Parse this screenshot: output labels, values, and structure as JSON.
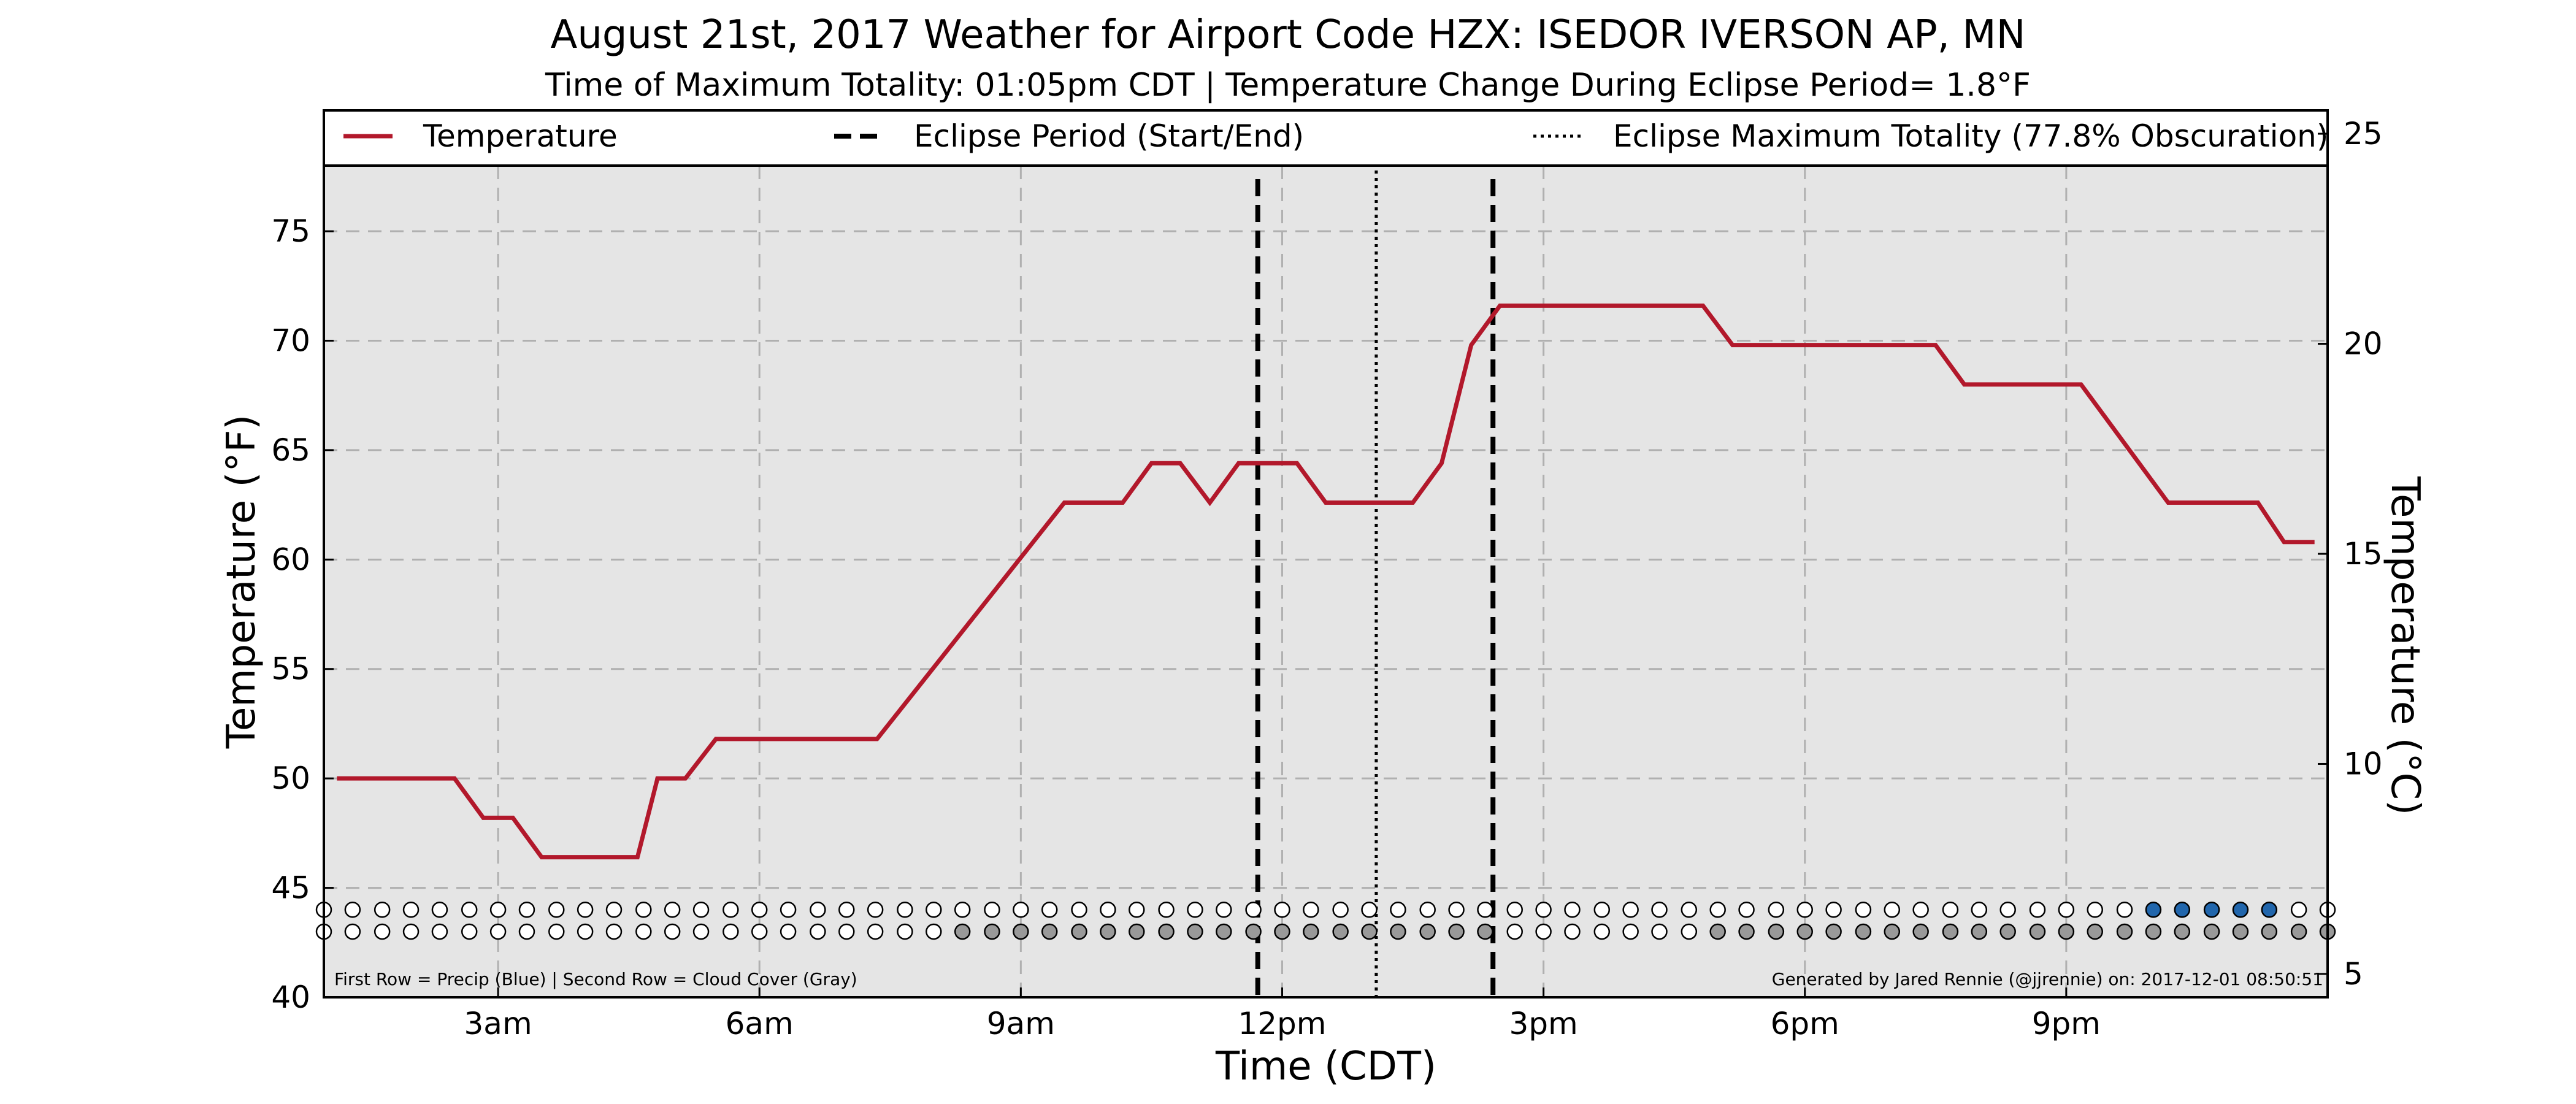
{
  "chart_data": {
    "type": "line",
    "title": "August 21st, 2017 Weather for Airport Code HZX: ISEDOR IVERSON AP, MN",
    "subtitle": "Time of Maximum Totality: 01:05pm CDT | Temperature Change During Eclipse Period= 1.8°F",
    "xlabel": "Time (CDT)",
    "ylabel": "Temperature (°F)",
    "ylabel_right": "Temperature (°C)",
    "xlim_hours": [
      1,
      24
    ],
    "ylim": [
      40,
      78
    ],
    "ylim_right_celsius": [
      4.4444,
      25.5556
    ],
    "x_ticks": [
      {
        "hour": 3,
        "label": "3am"
      },
      {
        "hour": 6,
        "label": "6am"
      },
      {
        "hour": 9,
        "label": "9am"
      },
      {
        "hour": 12,
        "label": "12pm"
      },
      {
        "hour": 15,
        "label": "3pm"
      },
      {
        "hour": 18,
        "label": "6pm"
      },
      {
        "hour": 21,
        "label": "9pm"
      }
    ],
    "y_ticks": [
      40,
      45,
      50,
      55,
      60,
      65,
      70,
      75
    ],
    "y_ticks_right": [
      5,
      10,
      15,
      20,
      25
    ],
    "grid": true,
    "legend": {
      "placement": "top",
      "entries": [
        {
          "label": "Temperature",
          "style": "solid",
          "color": "#b2182b"
        },
        {
          "label": "Eclipse Period (Start/End)",
          "style": "dashed",
          "color": "#000000"
        },
        {
          "label": "Eclipse Maximum Totality (77.8% Obscuration)",
          "style": "dotted",
          "color": "#000000"
        }
      ]
    },
    "series": [
      {
        "name": "Temperature",
        "color": "#b2182b",
        "points": [
          [
            1.15,
            50.0
          ],
          [
            2.15,
            50.0
          ],
          [
            2.5,
            50.0
          ],
          [
            2.83,
            48.2
          ],
          [
            3.17,
            48.2
          ],
          [
            3.5,
            46.4
          ],
          [
            4.17,
            46.4
          ],
          [
            4.6,
            46.4
          ],
          [
            4.83,
            50.0
          ],
          [
            5.15,
            50.0
          ],
          [
            5.5,
            51.8
          ],
          [
            7.35,
            51.8
          ],
          [
            9.5,
            62.6
          ],
          [
            10.17,
            62.6
          ],
          [
            10.5,
            64.4
          ],
          [
            10.83,
            64.4
          ],
          [
            11.17,
            62.6
          ],
          [
            11.5,
            64.4
          ],
          [
            12.17,
            64.4
          ],
          [
            12.5,
            62.6
          ],
          [
            13.5,
            62.6
          ],
          [
            13.83,
            64.4
          ],
          [
            14.17,
            69.8
          ],
          [
            14.5,
            71.6
          ],
          [
            16.83,
            71.6
          ],
          [
            17.17,
            69.8
          ],
          [
            19.5,
            69.8
          ],
          [
            19.83,
            68.0
          ],
          [
            21.17,
            68.0
          ],
          [
            22.17,
            62.6
          ],
          [
            23.2,
            62.6
          ],
          [
            23.5,
            60.8
          ],
          [
            23.85,
            60.8
          ]
        ]
      }
    ],
    "eclipse_start_hour": 11.72,
    "eclipse_end_hour": 14.42,
    "eclipse_max_hour": 13.08,
    "precip_row": {
      "y": 44.0,
      "hours": [
        1.0,
        1.33,
        1.67,
        2.0,
        2.33,
        2.67,
        3.0,
        3.33,
        3.67,
        4.0,
        4.33,
        4.67,
        5.0,
        5.33,
        5.67,
        6.0,
        6.33,
        6.67,
        7.0,
        7.33,
        7.67,
        8.0,
        8.33,
        8.67,
        9.0,
        9.33,
        9.67,
        10.0,
        10.33,
        10.67,
        11.0,
        11.33,
        11.67,
        12.0,
        12.33,
        12.67,
        13.0,
        13.33,
        13.67,
        14.0,
        14.33,
        14.67,
        15.0,
        15.33,
        15.67,
        16.0,
        16.33,
        16.67,
        17.0,
        17.33,
        17.67,
        18.0,
        18.33,
        18.67,
        19.0,
        19.33,
        19.67,
        20.0,
        20.33,
        20.67,
        21.0,
        21.33,
        21.67,
        22.0,
        22.33,
        22.67,
        23.0,
        23.33,
        23.67,
        24.0
      ],
      "precip": [
        0,
        0,
        0,
        0,
        0,
        0,
        0,
        0,
        0,
        0,
        0,
        0,
        0,
        0,
        0,
        0,
        0,
        0,
        0,
        0,
        0,
        0,
        0,
        0,
        0,
        0,
        0,
        0,
        0,
        0,
        0,
        0,
        0,
        0,
        0,
        0,
        0,
        0,
        0,
        0,
        0,
        0,
        0,
        0,
        0,
        0,
        0,
        0,
        0,
        0,
        0,
        0,
        0,
        0,
        0,
        0,
        0,
        0,
        0,
        0,
        0,
        0,
        0,
        1,
        1,
        1,
        1,
        1,
        0,
        0
      ]
    },
    "cloud_row": {
      "y": 43.0,
      "hours": [
        1.0,
        1.33,
        1.67,
        2.0,
        2.33,
        2.67,
        3.0,
        3.33,
        3.67,
        4.0,
        4.33,
        4.67,
        5.0,
        5.33,
        5.67,
        6.0,
        6.33,
        6.67,
        7.0,
        7.33,
        7.67,
        8.0,
        8.33,
        8.67,
        9.0,
        9.33,
        9.67,
        10.0,
        10.33,
        10.67,
        11.0,
        11.33,
        11.67,
        12.0,
        12.33,
        12.67,
        13.0,
        13.33,
        13.67,
        14.0,
        14.33,
        14.67,
        15.0,
        15.33,
        15.67,
        16.0,
        16.33,
        16.67,
        17.0,
        17.33,
        17.67,
        18.0,
        18.33,
        18.67,
        19.0,
        19.33,
        19.67,
        20.0,
        20.33,
        20.67,
        21.0,
        21.33,
        21.67,
        22.0,
        22.33,
        22.67,
        23.0,
        23.33,
        23.67,
        24.0
      ],
      "cloud": [
        0,
        0,
        0,
        0,
        0,
        0,
        0,
        0,
        0,
        0,
        0,
        0,
        0,
        0,
        0,
        0,
        0,
        0,
        0,
        0,
        0,
        0,
        1,
        1,
        1,
        1,
        1,
        1,
        1,
        1,
        1,
        1,
        1,
        1,
        1,
        1,
        1,
        1,
        1,
        1,
        1,
        0,
        0,
        0,
        0,
        0,
        0,
        0,
        1,
        1,
        1,
        1,
        1,
        1,
        1,
        1,
        1,
        1,
        1,
        1,
        1,
        1,
        1,
        1,
        1,
        1,
        1,
        1,
        1,
        1
      ]
    },
    "notes": {
      "left": "First Row = Precip (Blue) | Second Row = Cloud Cover (Gray)",
      "right": "Generated by Jared Rennie (@jjrennie) on: 2017-12-01 08:50:51"
    },
    "colors": {
      "plot_bg": "#e5e5e5",
      "grid": "#b0b0b0",
      "temperature": "#b2182b",
      "precip": "#2166ac",
      "cloud": "#999999",
      "empty_dot": "#ffffff"
    }
  }
}
